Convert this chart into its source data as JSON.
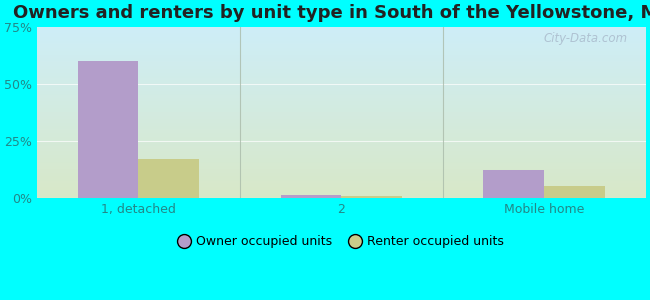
{
  "title": "Owners and renters by unit type in South of the Yellowstone, MT",
  "categories": [
    "1, detached",
    "2",
    "Mobile home"
  ],
  "owner_values": [
    60.0,
    1.2,
    12.0
  ],
  "renter_values": [
    17.0,
    1.0,
    5.0
  ],
  "owner_color": "#b39dca",
  "renter_color": "#c8cc8a",
  "ylim": [
    0,
    75
  ],
  "yticks": [
    0,
    25,
    50,
    75
  ],
  "yticklabels": [
    "0%",
    "25%",
    "50%",
    "75%"
  ],
  "legend_owner": "Owner occupied units",
  "legend_renter": "Renter occupied units",
  "bg_color_top_left": "#ceeef8",
  "bg_color_bottom_right": "#d8e8c8",
  "outer_bg": "#00ffff",
  "bar_width": 0.3,
  "title_fontsize": 13,
  "watermark": "City-Data.com",
  "tick_color": "#228888",
  "grid_color": "#ccddcc"
}
